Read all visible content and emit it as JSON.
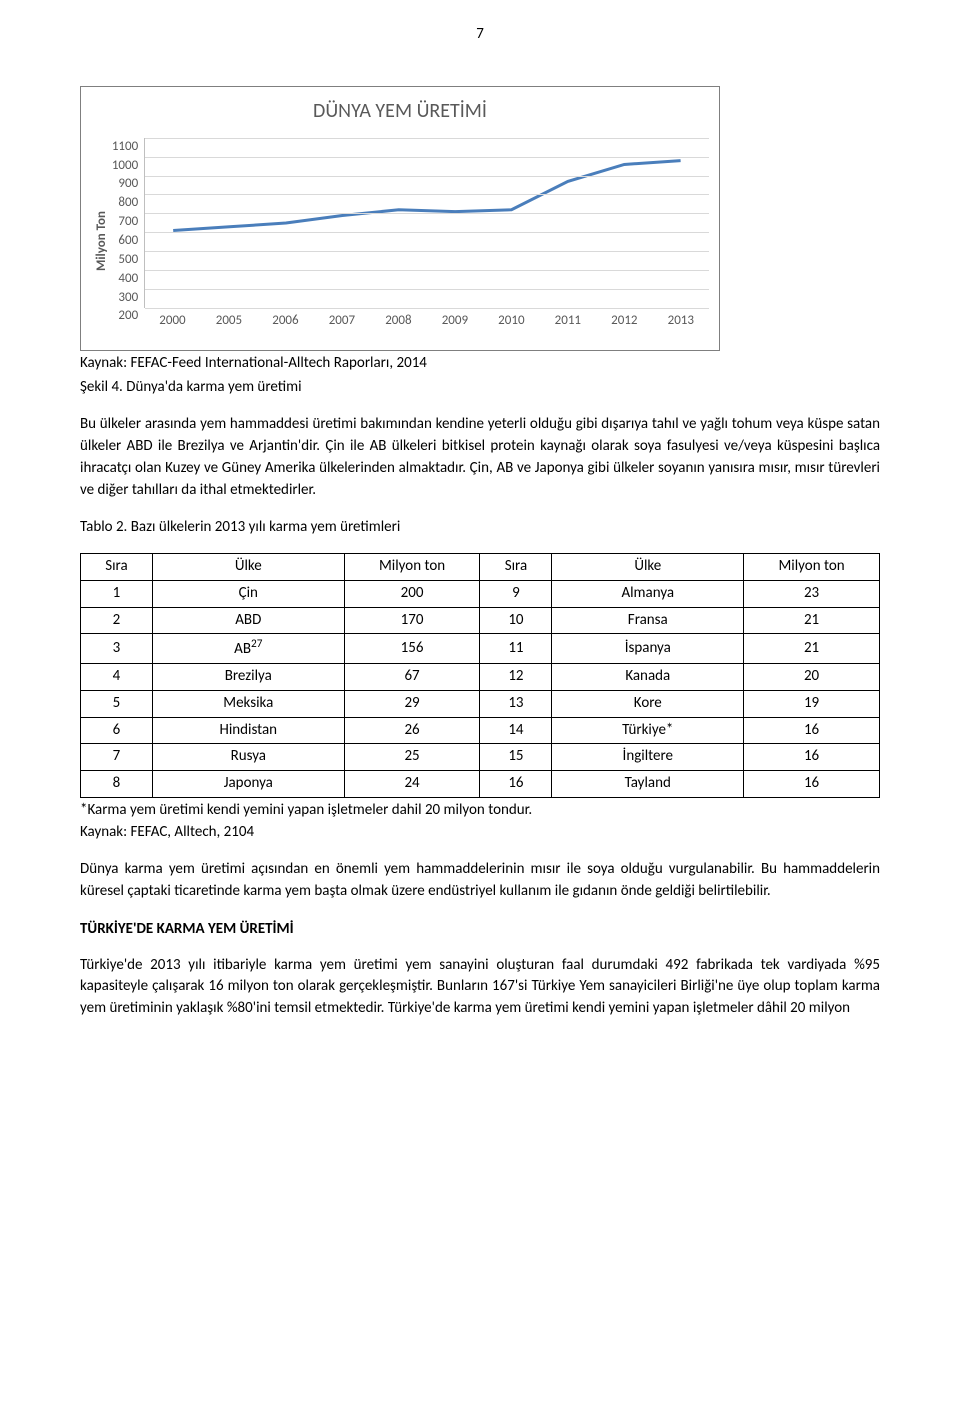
{
  "page_number": "7",
  "chart": {
    "type": "line",
    "title": "DÜNYA YEM ÜRETİMİ",
    "title_fontsize": 20,
    "title_color": "#595959",
    "y_axis_label": "Milyon Ton",
    "label_fontsize": 13,
    "axis_text_color": "#595959",
    "x_labels": [
      "2000",
      "2005",
      "2006",
      "2007",
      "2008",
      "2009",
      "2010",
      "2011",
      "2012",
      "2013"
    ],
    "y_values": [
      610,
      630,
      650,
      690,
      720,
      710,
      720,
      870,
      960,
      980
    ],
    "y_ticks": [
      "1100",
      "1000",
      "900",
      "800",
      "700",
      "600",
      "500",
      "400",
      "300",
      "200"
    ],
    "ylim": [
      200,
      1100
    ],
    "line_color": "#4a7ebb",
    "line_width": 3,
    "grid_color": "#d9d9d9",
    "border_color": "#7f7f7f",
    "background_color": "#ffffff"
  },
  "chart_caption": "Kaynak: FEFAC-Feed International-Alltech Raporları, 2014",
  "figure_label": "Şekil 4. Dünya'da karma yem üretimi",
  "para1": "Bu ülkeler arasında yem hammaddesi üretimi bakımından kendine yeterli olduğu gibi dışarıya tahıl ve yağlı tohum veya küspe satan ülkeler ABD ile Brezilya ve Arjantin'dir. Çin ile AB ülkeleri bitkisel protein kaynağı olarak soya fasulyesi ve/veya küspesini başlıca ihracatçı olan Kuzey ve Güney Amerika ülkelerinden almaktadır. Çin, AB ve Japonya gibi ülkeler soyanın yanısıra mısır, mısır türevleri ve diğer tahılları da ithal etmektedirler.",
  "table_label": "Tablo 2. Bazı ülkelerin 2013 yılı karma yem üretimleri",
  "table": {
    "headers": [
      "Sıra",
      "Ülke",
      "Milyon ton",
      "Sıra",
      "Ülke",
      "Milyon ton"
    ],
    "rows": [
      [
        "1",
        "Çin",
        "200",
        "9",
        "Almanya",
        "23"
      ],
      [
        "2",
        "ABD",
        "170",
        "10",
        "Fransa",
        "21"
      ],
      [
        "3",
        "AB",
        "156",
        "11",
        "İspanya",
        "21"
      ],
      [
        "4",
        "Brezilya",
        "67",
        "12",
        "Kanada",
        "20"
      ],
      [
        "5",
        "Meksika",
        "29",
        "13",
        "Kore",
        "19"
      ],
      [
        "6",
        "Hindistan",
        "26",
        "14",
        "Türkiye*",
        "16"
      ],
      [
        "7",
        "Rusya",
        "25",
        "15",
        "İngiltere",
        "16"
      ],
      [
        "8",
        "Japonya",
        "24",
        "16",
        "Tayland",
        "16"
      ]
    ],
    "ab_sup": "27",
    "col_widths": [
      "9%",
      "24%",
      "17%",
      "9%",
      "24%",
      "17%"
    ]
  },
  "table_footnote": "*Karma yem üretimi kendi yemini yapan işletmeler dahil 20 milyon tondur.",
  "table_source": "Kaynak: FEFAC, Alltech, 2104",
  "para2": "Dünya karma yem üretimi açısından en önemli yem hammaddelerinin mısır ile soya olduğu vurgulanabilir. Bu hammaddelerin küresel çaptaki ticaretinde karma yem başta olmak üzere endüstriyel kullanım ile gıdanın önde geldiği belirtilebilir.",
  "section_head": "TÜRKİYE'DE KARMA YEM ÜRETİMİ",
  "para3": "Türkiye'de 2013 yılı itibariyle karma yem üretimi yem sanayini oluşturan faal durumdaki 492 fabrikada tek vardiyada %95 kapasiteyle çalışarak 16 milyon ton olarak gerçekleşmiştir. Bunların 167'si Türkiye Yem sanayicileri Birliği'ne üye olup toplam karma yem üretiminin yaklaşık %80'ini temsil etmektedir. Türkiye'de karma yem üretimi kendi yemini yapan işletmeler dâhil 20 milyon"
}
